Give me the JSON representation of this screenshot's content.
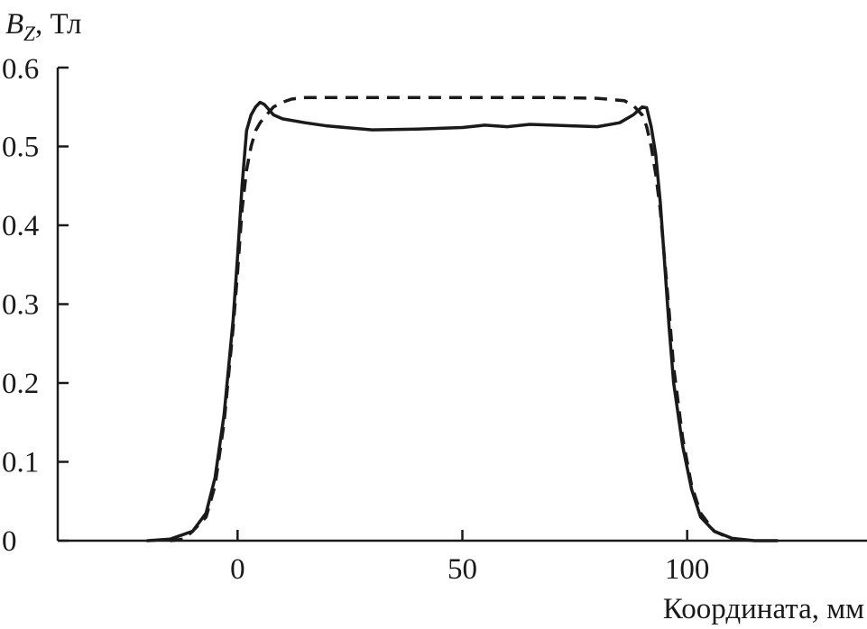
{
  "chart_data": {
    "type": "line",
    "xlabel": "Координата, мм",
    "ylabel": {
      "symbol": "B",
      "subscript": "Z",
      "unit": ", Тл"
    },
    "xlim": [
      -40,
      140
    ],
    "ylim": [
      0,
      0.6
    ],
    "x_ticks": [
      0,
      50,
      100
    ],
    "x_tick_labels": [
      "0",
      "50",
      "100"
    ],
    "y_ticks": [
      0,
      0.1,
      0.2,
      0.3,
      0.4,
      0.5,
      0.6
    ],
    "y_tick_labels": [
      "0",
      "0.1",
      "0.2",
      "0.3",
      "0.4",
      "0.5",
      "0.6"
    ],
    "grid": false,
    "series": [
      {
        "style": "solid",
        "color": "#1a1a1a",
        "x": [
          -20,
          -15,
          -10,
          -7,
          -5,
          -3,
          -1,
          0,
          1,
          2,
          3,
          4,
          5,
          6,
          8,
          10,
          15,
          20,
          30,
          40,
          50,
          55,
          60,
          65,
          70,
          75,
          80,
          85,
          88,
          90,
          91,
          92,
          93,
          94,
          95,
          96,
          97,
          99,
          101,
          103,
          106,
          110,
          115,
          120
        ],
        "y": [
          0.0,
          0.002,
          0.012,
          0.035,
          0.08,
          0.16,
          0.28,
          0.36,
          0.45,
          0.52,
          0.54,
          0.55,
          0.556,
          0.553,
          0.54,
          0.535,
          0.53,
          0.526,
          0.521,
          0.522,
          0.524,
          0.527,
          0.525,
          0.528,
          0.527,
          0.526,
          0.525,
          0.53,
          0.54,
          0.55,
          0.549,
          0.525,
          0.49,
          0.43,
          0.35,
          0.27,
          0.2,
          0.12,
          0.065,
          0.03,
          0.012,
          0.003,
          0.0,
          0.0
        ]
      },
      {
        "style": "dashed",
        "color": "#1a1a1a",
        "x": [
          -15,
          -12,
          -10,
          -7,
          -5,
          -3,
          -1,
          0,
          1,
          2,
          3,
          4,
          5,
          6,
          8,
          10,
          12,
          15,
          20,
          30,
          50,
          70,
          80,
          86,
          88,
          90,
          91,
          92,
          93,
          94,
          95,
          96,
          97,
          99,
          101,
          103,
          106,
          110
        ],
        "y": [
          0.0,
          0.002,
          0.012,
          0.03,
          0.07,
          0.15,
          0.27,
          0.34,
          0.42,
          0.47,
          0.5,
          0.52,
          0.53,
          0.537,
          0.55,
          0.556,
          0.56,
          0.562,
          0.562,
          0.562,
          0.562,
          0.562,
          0.561,
          0.558,
          0.552,
          0.54,
          0.525,
          0.5,
          0.465,
          0.42,
          0.355,
          0.29,
          0.22,
          0.13,
          0.07,
          0.035,
          0.012,
          0.002
        ]
      }
    ]
  }
}
